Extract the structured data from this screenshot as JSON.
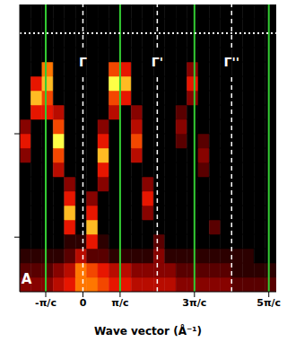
{
  "chart_data": {
    "type": "heatmap",
    "xlabel": "Wave vector (Å⁻¹)",
    "xlim": [
      -1.7,
      5.2
    ],
    "xticks": [
      {
        "value": -1,
        "label": "-π/c"
      },
      0,
      {
        "value": 1,
        "label": "π/c"
      },
      {
        "value": 3,
        "label": "3π/c"
      },
      {
        "value": 5,
        "label": "5π/c"
      }
    ],
    "ylim": [
      0,
      1
    ],
    "yticks": [
      0.19,
      0.55
    ],
    "tick_labels": "x",
    "x_bins": [
      -1.7,
      -1.4,
      -1.1,
      -0.8,
      -0.5,
      -0.2,
      0.1,
      0.4,
      0.7,
      1.0,
      1.3,
      1.6,
      1.9,
      2.2,
      2.5,
      2.8,
      3.1,
      3.4,
      3.7,
      4.0,
      4.3,
      4.6,
      4.9,
      5.2
    ],
    "y_bins": [
      0,
      0.05,
      0.1,
      0.15,
      0.2,
      0.25,
      0.3,
      0.35,
      0.4,
      0.45,
      0.5,
      0.55,
      0.6,
      0.65,
      0.7,
      0.75,
      0.8,
      0.85,
      0.9,
      0.95,
      1
    ],
    "zlim": [
      0,
      9
    ],
    "cells": [
      [
        3,
        3,
        3,
        4,
        5,
        7,
        7,
        6,
        5,
        5,
        4,
        4,
        4,
        4,
        3,
        3,
        3,
        3,
        3,
        2,
        2,
        2,
        2
      ],
      [
        2,
        2,
        2,
        3,
        4,
        7,
        6,
        5,
        4,
        4,
        3,
        3,
        3,
        3,
        2,
        2,
        2,
        2,
        2,
        1,
        1,
        1,
        1
      ],
      [
        1,
        1,
        1,
        1,
        2,
        4,
        2,
        2,
        1,
        1,
        1,
        1,
        3,
        1,
        1,
        1,
        1,
        1,
        1,
        1,
        1,
        0,
        0
      ],
      [
        0,
        0,
        0,
        0,
        1,
        1,
        5,
        1,
        0,
        0,
        0,
        0,
        2,
        0,
        0,
        0,
        0,
        0,
        0,
        0,
        0,
        0,
        0
      ],
      [
        0,
        0,
        0,
        0,
        5,
        0,
        8,
        0,
        0,
        0,
        0,
        0,
        0,
        0,
        0,
        0,
        0,
        2,
        0,
        0,
        0,
        0,
        0
      ],
      [
        0,
        0,
        0,
        0,
        8,
        0,
        5,
        0,
        0,
        0,
        0,
        3,
        0,
        0,
        0,
        0,
        0,
        0,
        0,
        0,
        0,
        0,
        0
      ],
      [
        0,
        0,
        0,
        0,
        5,
        0,
        3,
        0,
        0,
        0,
        0,
        5,
        0,
        0,
        0,
        0,
        0,
        0,
        0,
        0,
        0,
        0,
        0
      ],
      [
        0,
        0,
        0,
        0,
        3,
        0,
        0,
        3,
        0,
        0,
        0,
        3,
        0,
        0,
        0,
        0,
        0,
        0,
        0,
        0,
        0,
        0,
        0
      ],
      [
        0,
        0,
        0,
        4,
        0,
        0,
        0,
        5,
        0,
        0,
        0,
        0,
        0,
        0,
        0,
        0,
        2,
        0,
        0,
        0,
        0,
        0,
        0
      ],
      [
        3,
        0,
        0,
        6,
        0,
        0,
        0,
        8,
        0,
        0,
        4,
        0,
        0,
        0,
        0,
        0,
        3,
        0,
        0,
        0,
        0,
        0,
        0
      ],
      [
        5,
        0,
        0,
        9,
        0,
        0,
        0,
        5,
        0,
        0,
        6,
        0,
        0,
        0,
        2,
        0,
        2,
        0,
        0,
        0,
        0,
        0,
        0
      ],
      [
        3,
        0,
        0,
        6,
        0,
        0,
        0,
        3,
        0,
        0,
        4,
        0,
        0,
        0,
        3,
        0,
        0,
        0,
        0,
        0,
        0,
        0,
        0
      ],
      [
        0,
        5,
        5,
        4,
        0,
        0,
        0,
        0,
        4,
        0,
        3,
        0,
        0,
        0,
        2,
        0,
        0,
        0,
        0,
        0,
        0,
        0,
        0
      ],
      [
        0,
        8,
        6,
        0,
        0,
        0,
        0,
        0,
        6,
        5,
        0,
        0,
        0,
        0,
        0,
        3,
        0,
        0,
        0,
        0,
        0,
        0,
        0
      ],
      [
        0,
        5,
        8,
        0,
        0,
        0,
        0,
        0,
        9,
        8,
        0,
        0,
        0,
        0,
        0,
        5,
        0,
        0,
        0,
        0,
        0,
        0,
        0
      ],
      [
        0,
        0,
        7,
        0,
        0,
        0,
        0,
        0,
        6,
        5,
        0,
        0,
        0,
        0,
        0,
        3,
        0,
        0,
        0,
        0,
        0,
        0,
        0
      ],
      [
        0,
        0,
        0,
        0,
        0,
        0,
        0,
        0,
        0,
        0,
        0,
        0,
        0,
        0,
        0,
        0,
        0,
        0,
        0,
        0,
        0,
        0,
        0
      ],
      [
        0,
        0,
        0,
        0,
        0,
        0,
        0,
        0,
        0,
        0,
        0,
        0,
        0,
        0,
        0,
        0,
        0,
        0,
        0,
        0,
        0,
        0,
        0
      ],
      [
        0,
        0,
        0,
        0,
        0,
        0,
        0,
        0,
        0,
        0,
        0,
        0,
        0,
        0,
        0,
        0,
        0,
        0,
        0,
        0,
        0,
        0,
        0
      ],
      [
        0,
        0,
        0,
        0,
        0,
        0,
        0,
        0,
        0,
        0,
        0,
        0,
        0,
        0,
        0,
        0,
        0,
        0,
        0,
        0,
        0,
        0,
        0
      ]
    ],
    "vlines": [
      {
        "x": -1,
        "color": "#33cc33",
        "line_style": "solid"
      },
      {
        "x": 1,
        "color": "#33cc33",
        "line_style": "solid"
      },
      {
        "x": 3,
        "color": "#33cc33",
        "line_style": "solid"
      },
      {
        "x": 5,
        "color": "#33cc33",
        "line_style": "solid"
      },
      {
        "x": 0,
        "color": "#ffffff",
        "line_style": "dashed",
        "label": "Γ",
        "label_y": 0.8
      },
      {
        "x": 2,
        "color": "#ffffff",
        "line_style": "dashed",
        "label": "Γ'",
        "label_y": 0.8
      },
      {
        "x": 4,
        "color": "#ffffff",
        "line_style": "dashed",
        "label": "Γ''",
        "label_y": 0.8
      }
    ],
    "hlines": [
      {
        "y": 0.9,
        "color": "#ffffff",
        "line_style": "dotted"
      }
    ],
    "annotations": [
      {
        "text": "A",
        "x": -1.52,
        "y": 0.045
      }
    ]
  }
}
